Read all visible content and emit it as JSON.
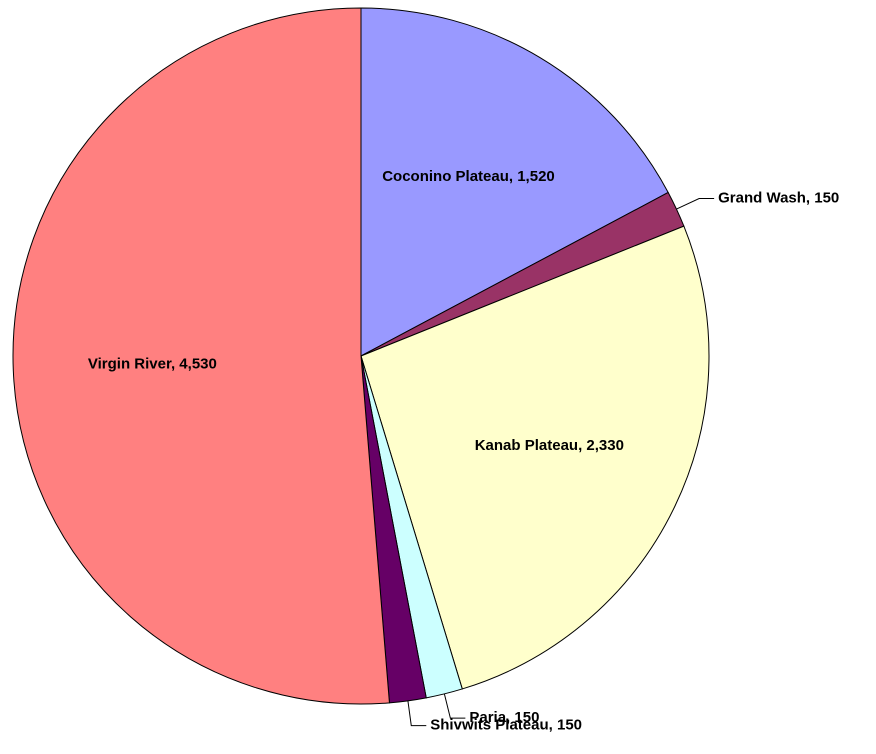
{
  "chart_data": {
    "type": "pie",
    "values": [
      1520,
      150,
      2330,
      150,
      150,
      4530
    ],
    "value_labels": [
      "Coconino Plateau, 1,520",
      "Grand Wash, 150",
      "Kanab Plateau, 2,330",
      "Paria, 150",
      "Shivwits Plateau, 150",
      "Virgin River, 4,530"
    ],
    "colors": [
      "#9999ff",
      "#993366",
      "#ffffcc",
      "#ccffff",
      "#660066",
      "#ff8080"
    ]
  }
}
